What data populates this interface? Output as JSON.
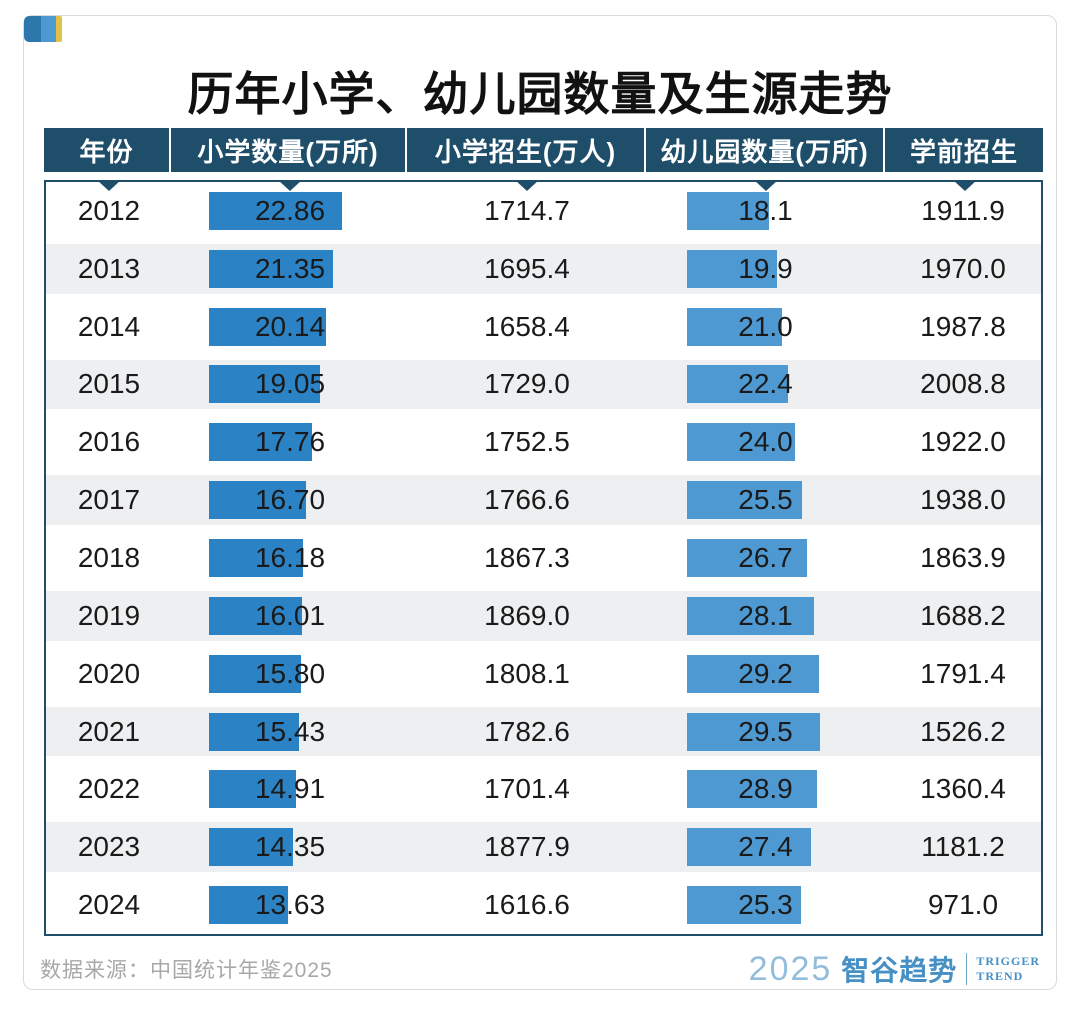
{
  "page": {
    "title": "历年小学、幼儿园数量及生源走势",
    "source_note": "数据来源：中国统计年鉴2025",
    "brand": {
      "year": "2025",
      "name": "智谷趋势",
      "tagline_line1": "TRIGGER",
      "tagline_line2": "TREND"
    }
  },
  "colors": {
    "header_bg": "#1f4e6b",
    "body_border": "#1f4e6b",
    "bar_primary": "#2b82c4",
    "bar_kindergarten": "#4f99d3",
    "alt_row_bg": "#edeff1",
    "logo_dark_blue": "#2d77ad",
    "logo_light_blue": "#4f99d3",
    "logo_yellow": "#e2c14b",
    "brand_blue": "#4690c4",
    "source_gray": "#a8a8a8"
  },
  "chart_data": {
    "type": "table",
    "title": "历年小学、幼儿园数量及生源走势",
    "columns": [
      "年份",
      "小学数量(万所)",
      "小学招生(万人)",
      "幼儿园数量(万所)",
      "学前招生"
    ],
    "bar_columns": [
      "小学数量(万所)",
      "幼儿园数量(万所)"
    ],
    "legend_position": "none",
    "rows": [
      [
        "2012",
        "22.86",
        "1714.7",
        "18.1",
        "1911.9"
      ],
      [
        "2013",
        "21.35",
        "1695.4",
        "19.9",
        "1970.0"
      ],
      [
        "2014",
        "20.14",
        "1658.4",
        "21.0",
        "1987.8"
      ],
      [
        "2015",
        "19.05",
        "1729.0",
        "22.4",
        "2008.8"
      ],
      [
        "2016",
        "17.76",
        "1752.5",
        "24.0",
        "1922.0"
      ],
      [
        "2017",
        "16.70",
        "1766.6",
        "25.5",
        "1938.0"
      ],
      [
        "2018",
        "16.18",
        "1867.3",
        "26.7",
        "1863.9"
      ],
      [
        "2019",
        "16.01",
        "1869.0",
        "28.1",
        "1688.2"
      ],
      [
        "2020",
        "15.80",
        "1808.1",
        "29.2",
        "1791.4"
      ],
      [
        "2021",
        "15.43",
        "1782.6",
        "29.5",
        "1526.2"
      ],
      [
        "2022",
        "14.91",
        "1701.4",
        "28.9",
        "1360.4"
      ],
      [
        "2023",
        "14.35",
        "1877.9",
        "27.4",
        "1181.2"
      ],
      [
        "2024",
        "13.63",
        "1616.6",
        "25.3",
        "971.0"
      ]
    ]
  }
}
